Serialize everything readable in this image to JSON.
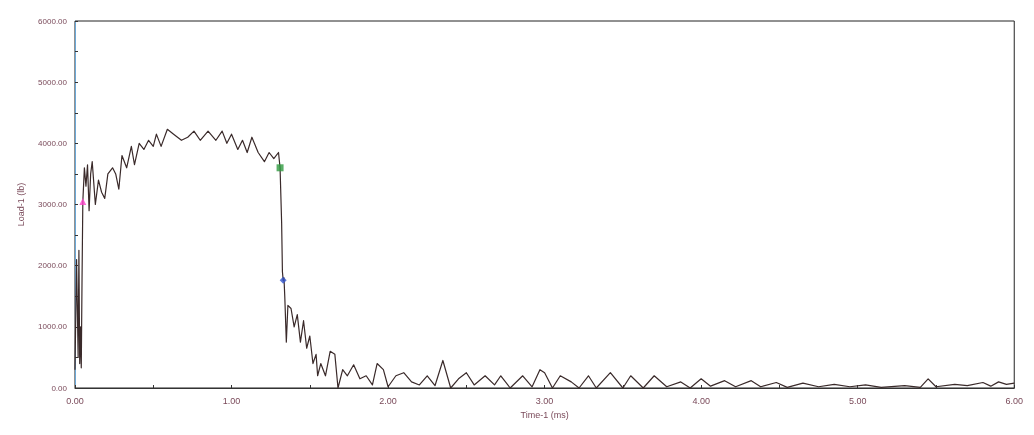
{
  "chart_data": {
    "type": "line",
    "xlabel": "Time-1 (ms)",
    "ylabel": "Load-1 (lb)",
    "xlim": [
      0,
      6
    ],
    "ylim": [
      0,
      6000
    ],
    "xticks": [
      {
        "value": 0,
        "label": "0.00"
      },
      {
        "value": 0.5,
        "label": null
      },
      {
        "value": 1,
        "label": "1.00"
      },
      {
        "value": 1.5,
        "label": null
      },
      {
        "value": 2,
        "label": "2.00"
      },
      {
        "value": 2.5,
        "label": null
      },
      {
        "value": 3,
        "label": "3.00"
      },
      {
        "value": 3.5,
        "label": null
      },
      {
        "value": 4,
        "label": "4.00"
      },
      {
        "value": 4.5,
        "label": null
      },
      {
        "value": 5,
        "label": "5.00"
      },
      {
        "value": 5.5,
        "label": null
      },
      {
        "value": 6,
        "label": "6.00"
      }
    ],
    "yticks": [
      {
        "value": 0,
        "label": "0.00"
      },
      {
        "value": 500,
        "label": null
      },
      {
        "value": 1000,
        "label": "1000.00"
      },
      {
        "value": 1500,
        "label": null
      },
      {
        "value": 2000,
        "label": "2000.00"
      },
      {
        "value": 2500,
        "label": null
      },
      {
        "value": 3000,
        "label": "3000.00"
      },
      {
        "value": 3500,
        "label": null
      },
      {
        "value": 4000,
        "label": "4000.00"
      },
      {
        "value": 4500,
        "label": null
      },
      {
        "value": 5000,
        "label": "5000.00"
      },
      {
        "value": 5500,
        "label": null
      },
      {
        "value": 6000,
        "label": "6000.00"
      }
    ],
    "grid": false,
    "series": [
      {
        "type": "line",
        "color": "#3a2a2a",
        "marker": "none",
        "line_style": "solid",
        "x": [
          0,
          0.01,
          0.02,
          0.025,
          0.03,
          0.035,
          0.04,
          0.045,
          0.05,
          0.06,
          0.07,
          0.08,
          0.09,
          0.1,
          0.11,
          0.13,
          0.15,
          0.17,
          0.19,
          0.21,
          0.24,
          0.26,
          0.28,
          0.3,
          0.33,
          0.36,
          0.38,
          0.41,
          0.44,
          0.47,
          0.5,
          0.52,
          0.55,
          0.59,
          0.63,
          0.68,
          0.72,
          0.76,
          0.8,
          0.85,
          0.9,
          0.94,
          0.97,
          1,
          1.04,
          1.07,
          1.1,
          1.13,
          1.17,
          1.21,
          1.24,
          1.27,
          1.3,
          1.31,
          1.32,
          1.325,
          1.33,
          1.335,
          1.34,
          1.35,
          1.36,
          1.38,
          1.4,
          1.42,
          1.44,
          1.46,
          1.48,
          1.5,
          1.52,
          1.54,
          1.55,
          1.57,
          1.6,
          1.63,
          1.66,
          1.68,
          1.71,
          1.74,
          1.78,
          1.82,
          1.86,
          1.9,
          1.93,
          1.97,
          2,
          2.05,
          2.1,
          2.15,
          2.2,
          2.25,
          2.3,
          2.35,
          2.4,
          2.45,
          2.5,
          2.55,
          2.62,
          2.68,
          2.72,
          2.78,
          2.86,
          2.92,
          2.97,
          3,
          3.05,
          3.1,
          3.17,
          3.22,
          3.28,
          3.33,
          3.42,
          3.5,
          3.55,
          3.63,
          3.7,
          3.78,
          3.87,
          3.93,
          4,
          4.06,
          4.15,
          4.22,
          4.32,
          4.38,
          4.48,
          4.55,
          4.65,
          4.75,
          4.85,
          4.95,
          5.05,
          5.15,
          5.3,
          5.4,
          5.45,
          5.5,
          5.62,
          5.7,
          5.8,
          5.85,
          5.9,
          5.95,
          6
        ],
        "values": [
          300,
          2100,
          500,
          2250,
          400,
          1000,
          330,
          1800,
          3050,
          3600,
          3300,
          3650,
          2900,
          3500,
          3700,
          3000,
          3400,
          3200,
          3100,
          3500,
          3600,
          3500,
          3250,
          3800,
          3600,
          3950,
          3650,
          4000,
          3900,
          4050,
          3950,
          4150,
          3950,
          4230,
          4150,
          4050,
          4100,
          4200,
          4050,
          4200,
          4050,
          4200,
          4000,
          4150,
          3900,
          4050,
          3850,
          4100,
          3850,
          3700,
          3850,
          3750,
          3850,
          3600,
          2700,
          1900,
          1760,
          1800,
          1500,
          750,
          1350,
          1300,
          1000,
          1200,
          750,
          1100,
          650,
          850,
          400,
          550,
          200,
          400,
          200,
          600,
          550,
          0,
          300,
          200,
          380,
          150,
          200,
          50,
          400,
          300,
          20,
          200,
          250,
          100,
          50,
          200,
          40,
          450,
          0,
          150,
          250,
          50,
          200,
          50,
          200,
          0,
          200,
          20,
          300,
          250,
          0,
          200,
          100,
          0,
          200,
          0,
          250,
          0,
          200,
          0,
          200,
          20,
          100,
          0,
          150,
          30,
          120,
          20,
          120,
          20,
          90,
          10,
          80,
          20,
          60,
          20,
          50,
          10,
          40,
          10,
          150,
          20,
          60,
          40,
          90,
          30,
          100,
          60,
          80
        ]
      },
      {
        "type": "scatter",
        "color": "#ff44cc",
        "marker": "triangle",
        "x": [
          0.05
        ],
        "values": [
          3050
        ]
      },
      {
        "type": "scatter",
        "color": "#2e9a3e",
        "marker": "square",
        "x": [
          1.31
        ],
        "values": [
          3600
        ]
      },
      {
        "type": "scatter",
        "color": "#3355cc",
        "marker": "diamond",
        "x": [
          1.33
        ],
        "values": [
          1760
        ]
      }
    ]
  }
}
